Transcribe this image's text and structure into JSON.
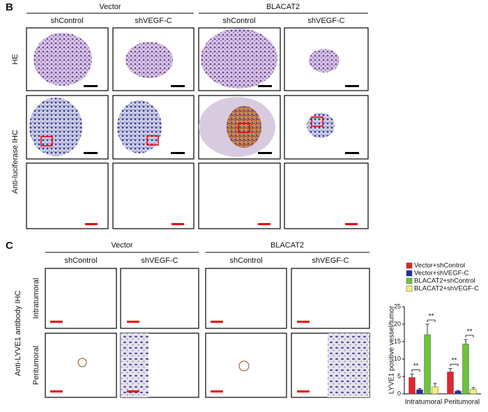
{
  "panel_b": {
    "label": "B",
    "groups": [
      "Vector",
      "BLACAT2"
    ],
    "columns": [
      "shControl",
      "shVEGF-C",
      "shControl",
      "shVEGF-C"
    ],
    "rows": [
      "HE",
      "Anti-luciferase IHC"
    ]
  },
  "panel_c": {
    "label": "C",
    "groups": [
      "Vector",
      "BLACAT2"
    ],
    "columns": [
      "shControl",
      "shVEGF-C",
      "shControl",
      "shVEGF-C"
    ],
    "rows": [
      "Intratumoral",
      "Peritumoral"
    ],
    "row_group": "Anti-LYVE1 antibody IHC"
  },
  "chart_data": {
    "type": "bar",
    "y_label": "LYVE1 positive vessel/tumor",
    "categories": [
      "Intratumoral",
      "Peritumoral"
    ],
    "series": [
      {
        "name": "Vector+shControl",
        "color": "#e3232b",
        "values": [
          4.7,
          6.3
        ],
        "errors": [
          1.0,
          1.0
        ]
      },
      {
        "name": "Vector+shVEGF-C",
        "color": "#1f2fa3",
        "values": [
          1.2,
          0.8
        ],
        "errors": [
          0.3,
          0.2
        ]
      },
      {
        "name": "BLACAT2+shControl",
        "color": "#6cc43c",
        "values": [
          17,
          14.3
        ],
        "errors": [
          3.0,
          1.3
        ]
      },
      {
        "name": "BLACAT2+shVEGF-C",
        "color": "#f3ef78",
        "values": [
          2,
          1.3
        ],
        "errors": [
          1.0,
          0.5
        ]
      }
    ],
    "annotations": [
      "**",
      "**",
      "**",
      "**"
    ],
    "ylim": [
      0,
      25
    ],
    "yticks": [
      0,
      5,
      10,
      15,
      20,
      25
    ]
  }
}
